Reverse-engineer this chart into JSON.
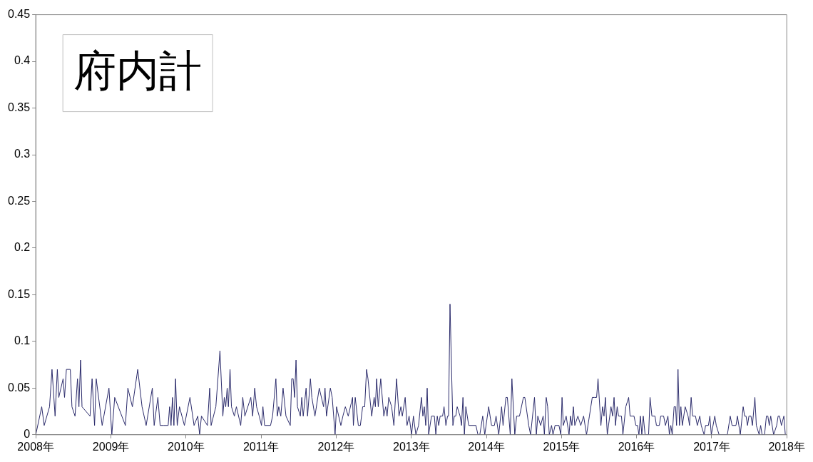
{
  "chart_data": {
    "type": "line",
    "title": "府内計",
    "color": "#2b2b6b",
    "x": [
      "2008-01-01",
      "2008-01-30",
      "2008-02-11",
      "2008-03-08",
      "2008-03-20",
      "2008-04-04",
      "2008-04-15",
      "2008-04-22",
      "2008-05-13",
      "2008-05-20",
      "2008-05-29",
      "2008-06-17",
      "2008-06-25",
      "2008-07-10",
      "2008-07-22",
      "2008-07-29",
      "2008-08-06",
      "2008-08-13",
      "2008-09-21",
      "2008-10-01",
      "2008-10-13",
      "2008-10-21",
      "2008-11-19",
      "2008-12-22",
      "2009-01-05",
      "2009-01-19",
      "2009-03-12",
      "2009-03-24",
      "2009-04-15",
      "2009-05-11",
      "2009-06-01",
      "2009-06-21",
      "2009-07-21",
      "2009-07-30",
      "2009-08-17",
      "2009-08-28",
      "2009-09-15",
      "2009-10-06",
      "2009-10-13",
      "2009-10-20",
      "2009-10-27",
      "2009-11-03",
      "2009-11-11",
      "2009-11-19",
      "2009-11-30",
      "2009-12-24",
      "2010-01-20",
      "2010-02-09",
      "2010-02-27",
      "2010-03-08",
      "2010-03-17",
      "2010-04-15",
      "2010-04-26",
      "2010-05-03",
      "2010-05-26",
      "2010-06-15",
      "2010-06-29",
      "2010-07-06",
      "2010-07-13",
      "2010-07-20",
      "2010-07-26",
      "2010-08-03",
      "2010-08-10",
      "2010-08-24",
      "2010-09-03",
      "2010-09-24",
      "2010-10-04",
      "2010-10-14",
      "2010-11-12",
      "2010-11-21",
      "2010-12-01",
      "2010-12-10",
      "2010-12-23",
      "2011-01-03",
      "2011-01-10",
      "2011-01-18",
      "2011-02-16",
      "2011-02-26",
      "2011-03-14",
      "2011-03-21",
      "2011-03-28",
      "2011-04-07",
      "2011-04-18",
      "2011-05-02",
      "2011-05-23",
      "2011-05-30",
      "2011-06-06",
      "2011-06-13",
      "2011-06-20",
      "2011-06-27",
      "2011-07-11",
      "2011-07-18",
      "2011-07-25",
      "2011-08-08",
      "2011-08-15",
      "2011-08-29",
      "2011-09-05",
      "2011-09-20",
      "2011-10-11",
      "2011-11-01",
      "2011-11-08",
      "2011-11-15",
      "2011-12-04",
      "2011-12-13",
      "2011-12-27",
      "2012-01-03",
      "2012-01-24",
      "2012-02-03",
      "2012-02-15",
      "2012-02-29",
      "2012-03-21",
      "2012-03-25",
      "2012-04-03",
      "2012-04-18",
      "2012-04-28",
      "2012-05-09",
      "2012-05-19",
      "2012-05-28",
      "2012-06-04",
      "2012-06-22",
      "2012-07-04",
      "2012-07-10",
      "2012-07-16",
      "2012-07-24",
      "2012-08-05",
      "2012-08-20",
      "2012-08-29",
      "2012-09-05",
      "2012-09-13",
      "2012-09-27",
      "2012-10-08",
      "2012-10-21",
      "2012-11-02",
      "2012-11-11",
      "2012-11-18",
      "2012-12-02",
      "2012-12-11",
      "2012-12-21",
      "2013-01-02",
      "2013-01-11",
      "2013-01-23",
      "2013-02-05",
      "2013-02-19",
      "2013-02-26",
      "2013-03-05",
      "2013-03-12",
      "2013-03-19",
      "2013-03-26",
      "2013-04-09",
      "2013-04-23",
      "2013-04-30",
      "2013-05-07",
      "2013-05-14",
      "2013-05-21",
      "2013-06-02",
      "2013-06-09",
      "2013-06-18",
      "2013-06-26",
      "2013-07-01",
      "2013-07-08",
      "2013-07-22",
      "2013-07-29",
      "2013-08-05",
      "2013-08-12",
      "2013-08-26",
      "2013-09-02",
      "2013-09-09",
      "2013-09-16",
      "2013-09-23",
      "2013-10-07",
      "2013-11-11",
      "2013-11-21",
      "2013-11-30",
      "2013-12-14",
      "2013-12-24",
      "2014-01-12",
      "2014-01-26",
      "2014-02-09",
      "2014-02-17",
      "2014-03-02",
      "2014-03-16",
      "2014-03-23",
      "2014-04-06",
      "2014-04-13",
      "2014-04-27",
      "2014-05-05",
      "2014-05-19",
      "2014-05-28",
      "2014-06-11",
      "2014-06-30",
      "2014-07-07",
      "2014-07-26",
      "2014-08-04",
      "2014-08-23",
      "2014-09-01",
      "2014-09-08",
      "2014-09-22",
      "2014-10-04",
      "2014-10-10",
      "2014-10-19",
      "2014-10-26",
      "2014-11-03",
      "2014-11-14",
      "2014-11-21",
      "2014-12-01",
      "2014-12-20",
      "2014-12-29",
      "2015-01-04",
      "2015-01-10",
      "2015-01-24",
      "2015-02-07",
      "2015-02-14",
      "2015-02-21",
      "2015-02-28",
      "2015-03-07",
      "2015-03-22",
      "2015-04-05",
      "2015-04-19",
      "2015-05-03",
      "2015-05-17",
      "2015-05-31",
      "2015-06-10",
      "2015-06-21",
      "2015-06-28",
      "2015-07-12",
      "2015-07-20",
      "2015-07-27",
      "2015-08-03",
      "2015-08-12",
      "2015-08-30",
      "2015-09-07",
      "2015-09-14",
      "2015-09-21",
      "2015-09-29",
      "2015-10-06",
      "2015-10-20",
      "2015-10-27",
      "2015-11-10",
      "2015-11-24",
      "2015-12-01",
      "2015-12-20",
      "2015-12-29",
      "2016-01-06",
      "2016-01-13",
      "2016-01-20",
      "2016-01-27",
      "2016-02-03",
      "2016-02-12",
      "2016-02-29",
      "2016-03-07",
      "2016-03-16",
      "2016-03-31",
      "2016-04-07",
      "2016-04-21",
      "2016-04-28",
      "2016-05-12",
      "2016-05-21",
      "2016-06-02",
      "2016-06-09",
      "2016-06-16",
      "2016-06-23",
      "2016-07-02",
      "2016-07-09",
      "2016-07-14",
      "2016-07-21",
      "2016-07-28",
      "2016-08-04",
      "2016-08-11",
      "2016-08-25",
      "2016-09-08",
      "2016-09-15",
      "2016-09-23",
      "2016-09-30",
      "2016-10-14",
      "2016-10-23",
      "2016-11-04",
      "2016-11-11",
      "2016-11-25",
      "2016-12-02",
      "2016-12-16",
      "2016-12-23",
      "2016-12-30",
      "2017-01-16",
      "2017-01-23",
      "2017-02-06",
      "2017-03-18",
      "2017-04-01",
      "2017-04-10",
      "2017-04-29",
      "2017-05-06",
      "2017-05-13",
      "2017-05-20",
      "2017-06-03",
      "2017-06-10",
      "2017-06-17",
      "2017-06-24",
      "2017-07-01",
      "2017-07-11",
      "2017-07-18",
      "2017-07-30",
      "2017-08-06",
      "2017-08-20",
      "2017-08-27",
      "2017-09-03",
      "2017-09-15",
      "2017-09-24",
      "2017-10-01",
      "2017-10-08",
      "2017-10-15",
      "2017-10-29",
      "2017-11-13",
      "2017-11-20",
      "2017-11-27",
      "2017-12-06",
      "2017-12-18",
      "2017-12-25"
    ],
    "values": [
      0,
      0.03,
      0.01,
      0.03,
      0.07,
      0.02,
      0.07,
      0.04,
      0.06,
      0.04,
      0.07,
      0.07,
      0.03,
      0.02,
      0.06,
      0.03,
      0.08,
      0.03,
      0.02,
      0.06,
      0.01,
      0.06,
      0.01,
      0.05,
      0,
      0.04,
      0.01,
      0.05,
      0.03,
      0.07,
      0.03,
      0.01,
      0.05,
      0.01,
      0.04,
      0.01,
      0.01,
      0.01,
      0.03,
      0.01,
      0.04,
      0.01,
      0.06,
      0.01,
      0.03,
      0.01,
      0.04,
      0.01,
      0.02,
      0,
      0.02,
      0.01,
      0.05,
      0.01,
      0.03,
      0.09,
      0.02,
      0.04,
      0.03,
      0.05,
      0.03,
      0.07,
      0.03,
      0.02,
      0.03,
      0.01,
      0.04,
      0.02,
      0.04,
      0.02,
      0.05,
      0.03,
      0.02,
      0.01,
      0.03,
      0.01,
      0.01,
      0.02,
      0.06,
      0.02,
      0.03,
      0.02,
      0.05,
      0.02,
      0.01,
      0.06,
      0.06,
      0.04,
      0.08,
      0.03,
      0.02,
      0.04,
      0.02,
      0.05,
      0.02,
      0.06,
      0.04,
      0.02,
      0.05,
      0.03,
      0.05,
      0.02,
      0.05,
      0.04,
      0,
      0.03,
      0.01,
      0.02,
      0.03,
      0.02,
      0.04,
      0.01,
      0.04,
      0.01,
      0.01,
      0.03,
      0.03,
      0.07,
      0.06,
      0.02,
      0.04,
      0.03,
      0.06,
      0.03,
      0.06,
      0.02,
      0.03,
      0.02,
      0.04,
      0.03,
      0.01,
      0.06,
      0.02,
      0.03,
      0.02,
      0.04,
      0.01,
      0.02,
      0,
      0.02,
      0,
      0.01,
      0.04,
      0.02,
      0.03,
      0.01,
      0.05,
      0,
      0.02,
      0.02,
      0,
      0.02,
      0.01,
      0.02,
      0.02,
      0.03,
      0.01,
      0.02,
      0.02,
      0.14,
      0.01,
      0.02,
      0.02,
      0.03,
      0.02,
      0.01,
      0.04,
      0,
      0.03,
      0.01,
      0.01,
      0,
      0,
      0.02,
      0,
      0.03,
      0.01,
      0.01,
      0.02,
      0,
      0.03,
      0.01,
      0.04,
      0.04,
      0,
      0.06,
      0,
      0.02,
      0.02,
      0.04,
      0.04,
      0.01,
      0,
      0.04,
      0,
      0.02,
      0.01,
      0.02,
      0,
      0.04,
      0.03,
      0,
      0.01,
      0,
      0.01,
      0.01,
      0,
      0.04,
      0.01,
      0.02,
      0,
      0.02,
      0.01,
      0.03,
      0.01,
      0.02,
      0.01,
      0.02,
      0,
      0.02,
      0.04,
      0.04,
      0.04,
      0.06,
      0.01,
      0.03,
      0.02,
      0.04,
      0,
      0.03,
      0.02,
      0.04,
      0.01,
      0.03,
      0.02,
      0.02,
      0,
      0.03,
      0.04,
      0.02,
      0.02,
      0.01,
      0.01,
      0,
      0.02,
      0,
      0.02,
      0,
      0,
      0.04,
      0.02,
      0.02,
      0.01,
      0.01,
      0.02,
      0.02,
      0.01,
      0.02,
      0,
      0.01,
      0,
      0.03,
      0.03,
      0.01,
      0.07,
      0.01,
      0.03,
      0.01,
      0.03,
      0.02,
      0.01,
      0.04,
      0.02,
      0.02,
      0.01,
      0.02,
      0.01,
      0,
      0.01,
      0.01,
      0.02,
      0,
      0.02,
      0.01,
      0,
      0,
      0.02,
      0.01,
      0.01,
      0.02,
      0.01,
      0,
      0.03,
      0.02,
      0.02,
      0.01,
      0.02,
      0.02,
      0.01,
      0.04,
      0.01,
      0,
      0.01,
      0,
      0,
      0.02,
      0.02,
      0.01,
      0.02,
      0,
      0.01,
      0.02,
      0.02,
      0.01,
      0.02,
      0
    ],
    "xlim": [
      "2008-01-01",
      "2018-01-01"
    ],
    "xticks": [
      {
        "value": "2008-01-01",
        "label": "2008年"
      },
      {
        "value": "2009-01-01",
        "label": "2009年"
      },
      {
        "value": "2010-01-01",
        "label": "2010年"
      },
      {
        "value": "2011-01-01",
        "label": "2011年"
      },
      {
        "value": "2012-01-01",
        "label": "2012年"
      },
      {
        "value": "2013-01-01",
        "label": "2013年"
      },
      {
        "value": "2014-01-01",
        "label": "2014年"
      },
      {
        "value": "2015-01-01",
        "label": "2015年"
      },
      {
        "value": "2016-01-01",
        "label": "2016年"
      },
      {
        "value": "2017-01-01",
        "label": "2017年"
      },
      {
        "value": "2018-01-01",
        "label": "2018年"
      }
    ],
    "ylim": [
      0,
      0.45
    ],
    "yticks": [
      0,
      0.05,
      0.1,
      0.15,
      0.2,
      0.25,
      0.3,
      0.35,
      0.4,
      0.45
    ]
  }
}
